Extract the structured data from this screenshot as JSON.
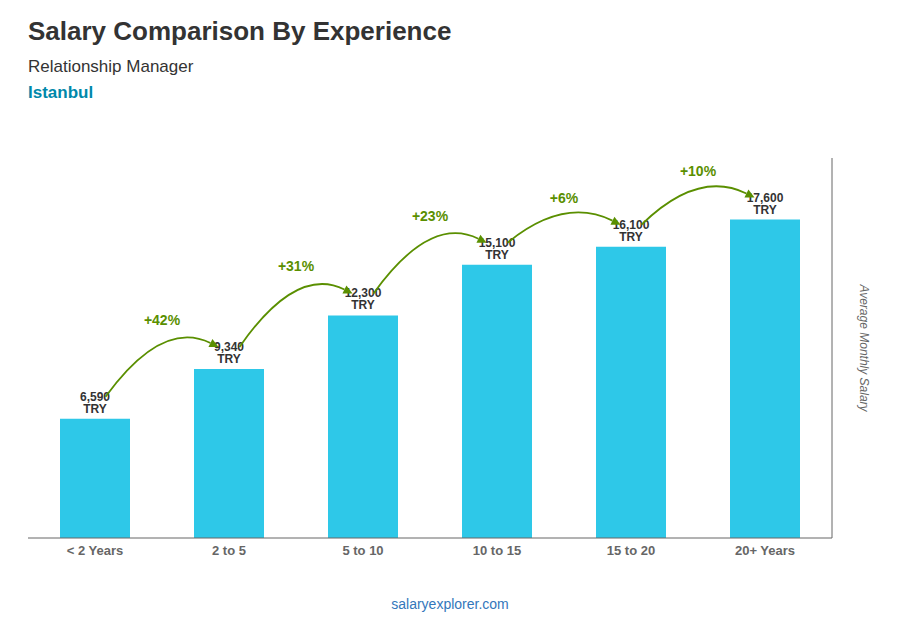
{
  "chart_data": {
    "type": "bar",
    "title": "Salary Comparison By Experience",
    "subtitle": "Relationship Manager",
    "ylabel": "Average Monthly Salary",
    "annotations": [
      "Istanbul",
      "salaryexplorer.com"
    ],
    "categories": [
      "< 2 Years",
      "2 to 5",
      "5 to 10",
      "10 to 15",
      "15 to 20",
      "20+ Years"
    ],
    "values": [
      6590,
      9340,
      12300,
      15100,
      16100,
      17600
    ],
    "value_labels": [
      "6,590 TRY",
      "9,340 TRY",
      "12,300 TRY",
      "15,100 TRY",
      "16,100 TRY",
      "17,600 TRY"
    ],
    "data_labels": true,
    "change_labels": [
      "+42%",
      "+31%",
      "+23%",
      "+6%",
      "+10%"
    ],
    "color": "#2ec8e8",
    "ylim": [
      0,
      21000
    ],
    "grid": false,
    "tick_labels": "x"
  }
}
